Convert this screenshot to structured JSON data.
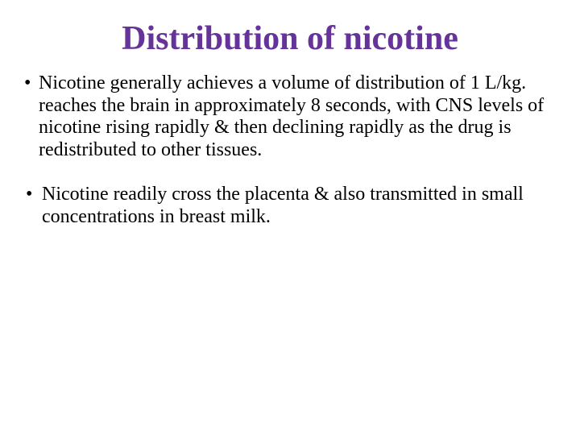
{
  "title_color": "#663399",
  "body_color": "#000000",
  "background_color": "#ffffff",
  "title": "Distribution of nicotine",
  "bullets": [
    "Nicotine generally achieves a volume of distribution of 1 L/kg. reaches the brain in approximately 8 seconds, with CNS levels of nicotine rising rapidly & then declining rapidly as the drug is redistributed to other tissues.",
    " Nicotine readily cross the placenta & also transmitted in small concentrations in breast milk."
  ]
}
